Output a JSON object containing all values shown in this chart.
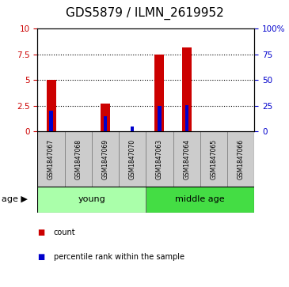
{
  "title": "GDS5879 / ILMN_2619952",
  "samples": [
    "GSM1847067",
    "GSM1847068",
    "GSM1847069",
    "GSM1847070",
    "GSM1847063",
    "GSM1847064",
    "GSM1847065",
    "GSM1847066"
  ],
  "count_values": [
    5.0,
    0.0,
    2.7,
    0.0,
    7.5,
    8.2,
    0.0,
    0.0
  ],
  "percentile_values": [
    20.0,
    0.0,
    15.0,
    5.0,
    25.0,
    26.0,
    0.0,
    0.0
  ],
  "left_ylim": [
    0,
    10
  ],
  "right_ylim": [
    0,
    100
  ],
  "left_yticks": [
    0,
    2.5,
    5,
    7.5,
    10
  ],
  "right_yticks": [
    0,
    25,
    50,
    75,
    100
  ],
  "right_yticklabels": [
    "0",
    "25",
    "50",
    "75",
    "100%"
  ],
  "age_groups": [
    {
      "label": "young",
      "indices": [
        0,
        1,
        2,
        3
      ],
      "color": "#aaffaa"
    },
    {
      "label": "middle age",
      "indices": [
        4,
        5,
        6,
        7
      ],
      "color": "#44dd44"
    }
  ],
  "red_color": "#cc0000",
  "blue_color": "#0000cc",
  "sample_box_color": "#cccccc",
  "legend_items": [
    {
      "label": "count",
      "color": "#cc0000"
    },
    {
      "label": "percentile rank within the sample",
      "color": "#0000cc"
    }
  ],
  "age_label": "age",
  "title_fontsize": 11,
  "tick_fontsize": 7.5,
  "sample_fontsize": 5.5,
  "age_fontsize": 8,
  "legend_fontsize": 7
}
